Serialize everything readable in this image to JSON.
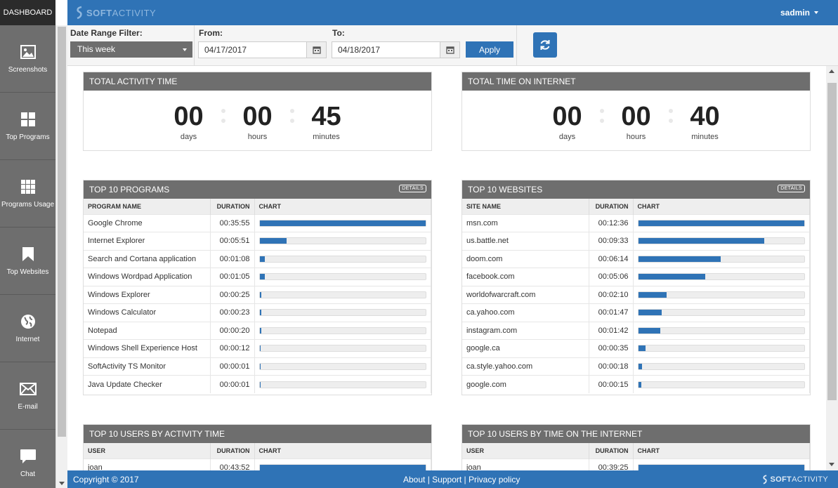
{
  "sidebar": {
    "header": "DASHBOARD",
    "items": [
      {
        "label": "Screenshots",
        "icon": "image-icon"
      },
      {
        "label": "Top Programs",
        "icon": "grid-4-icon"
      },
      {
        "label": "Programs Usage",
        "icon": "grid-9-icon"
      },
      {
        "label": "Top Websites",
        "icon": "bookmark-icon"
      },
      {
        "label": "Internet",
        "icon": "globe-icon"
      },
      {
        "label": "E-mail",
        "icon": "envelope-icon"
      },
      {
        "label": "Chat",
        "icon": "chat-bubble-icon"
      }
    ]
  },
  "header": {
    "logo_soft": "SOFT",
    "logo_activity": "ACTIVITY",
    "user": "sadmin"
  },
  "filter": {
    "range_label": "Date Range Filter:",
    "range_value": "This week",
    "from_label": "From:",
    "from_value": "04/17/2017",
    "to_label": "To:",
    "to_value": "04/18/2017",
    "apply_label": "Apply"
  },
  "total_activity": {
    "title": "TOTAL ACTIVITY TIME",
    "days": "00",
    "hours": "00",
    "minutes": "45",
    "days_label": "days",
    "hours_label": "hours",
    "minutes_label": "minutes"
  },
  "total_internet": {
    "title": "TOTAL TIME ON INTERNET",
    "days": "00",
    "hours": "00",
    "minutes": "40",
    "days_label": "days",
    "hours_label": "hours",
    "minutes_label": "minutes"
  },
  "top_programs": {
    "title": "TOP 10 PROGRAMS",
    "details": "DETAILS",
    "columns": [
      "PROGRAM NAME",
      "DURATION",
      "CHART"
    ],
    "rows": [
      {
        "name": "Google Chrome",
        "duration": "00:35:55",
        "pct": 100
      },
      {
        "name": "Internet Explorer",
        "duration": "00:05:51",
        "pct": 16.3
      },
      {
        "name": "Search and Cortana application",
        "duration": "00:01:08",
        "pct": 3.2
      },
      {
        "name": "Windows Wordpad Application",
        "duration": "00:01:05",
        "pct": 3.0
      },
      {
        "name": "Windows Explorer",
        "duration": "00:00:25",
        "pct": 1.2
      },
      {
        "name": "Windows Calculator",
        "duration": "00:00:23",
        "pct": 1.1
      },
      {
        "name": "Notepad",
        "duration": "00:00:20",
        "pct": 1.0
      },
      {
        "name": "Windows Shell Experience Host",
        "duration": "00:00:12",
        "pct": 0.6
      },
      {
        "name": "SoftActivity TS Monitor",
        "duration": "00:00:01",
        "pct": 0.1
      },
      {
        "name": "Java Update Checker",
        "duration": "00:00:01",
        "pct": 0.1
      }
    ]
  },
  "top_websites": {
    "title": "TOP 10 WEBSITES",
    "details": "DETAILS",
    "columns": [
      "SITE NAME",
      "DURATION",
      "CHART"
    ],
    "rows": [
      {
        "name": "msn.com",
        "duration": "00:12:36",
        "pct": 100
      },
      {
        "name": "us.battle.net",
        "duration": "00:09:33",
        "pct": 75.8
      },
      {
        "name": "doom.com",
        "duration": "00:06:14",
        "pct": 49.5
      },
      {
        "name": "facebook.com",
        "duration": "00:05:06",
        "pct": 40.5
      },
      {
        "name": "worldofwarcraft.com",
        "duration": "00:02:10",
        "pct": 17.2
      },
      {
        "name": "ca.yahoo.com",
        "duration": "00:01:47",
        "pct": 14.2
      },
      {
        "name": "instagram.com",
        "duration": "00:01:42",
        "pct": 13.5
      },
      {
        "name": "google.ca",
        "duration": "00:00:35",
        "pct": 4.6
      },
      {
        "name": "ca.style.yahoo.com",
        "duration": "00:00:18",
        "pct": 2.4
      },
      {
        "name": "google.com",
        "duration": "00:00:15",
        "pct": 2.0
      }
    ]
  },
  "top_users_activity": {
    "title": "TOP 10 USERS BY ACTIVITY TIME",
    "columns": [
      "USER",
      "DURATION",
      "CHART"
    ],
    "rows": [
      {
        "name": "joan",
        "duration": "00:43:52",
        "pct": 100
      }
    ]
  },
  "top_users_internet": {
    "title": "TOP 10 USERS BY TIME ON THE INTERNET",
    "columns": [
      "USER",
      "DURATION",
      "CHART"
    ],
    "rows": [
      {
        "name": "joan",
        "duration": "00:39:25",
        "pct": 100
      }
    ]
  },
  "footer": {
    "copyright": "Copyright © 2017",
    "about": "About",
    "support": "Support",
    "privacy": "Privacy policy",
    "sep": "|"
  },
  "colors": {
    "accent": "#2f73b6",
    "sidebar": "#6e6e6e",
    "panel_head": "#6e6e6e"
  }
}
